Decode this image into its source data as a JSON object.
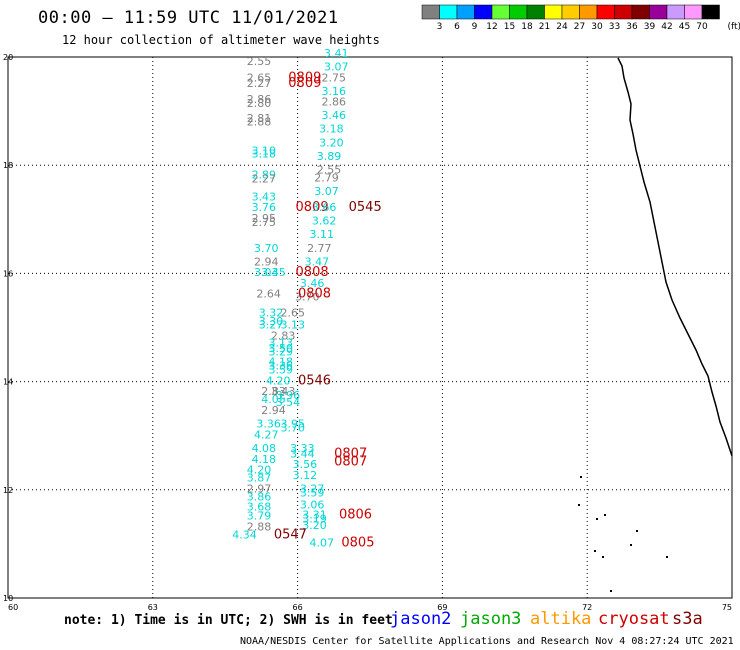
{
  "header": {
    "title": "00:00 – 11:59 UTC 11/01/2021",
    "subtitle": "12 hour collection of altimeter wave heights"
  },
  "legend": {
    "unit": "(ft)",
    "bins": [
      {
        "label": "3",
        "color": "#808080"
      },
      {
        "label": "6",
        "color": "#00ffff"
      },
      {
        "label": "9",
        "color": "#00a0ff"
      },
      {
        "label": "12",
        "color": "#0000ff"
      },
      {
        "label": "15",
        "color": "#66ff33"
      },
      {
        "label": "18",
        "color": "#00cc00"
      },
      {
        "label": "21",
        "color": "#008000"
      },
      {
        "label": "24",
        "color": "#ffff00"
      },
      {
        "label": "27",
        "color": "#ffcc00"
      },
      {
        "label": "30",
        "color": "#ff9900"
      },
      {
        "label": "33",
        "color": "#ff0000"
      },
      {
        "label": "36",
        "color": "#cc0000"
      },
      {
        "label": "39",
        "color": "#800000"
      },
      {
        "label": "42",
        "color": "#990099"
      },
      {
        "label": "45",
        "color": "#cc99ff"
      },
      {
        "label": "70",
        "color": "#ff99ff"
      },
      {
        "label": "",
        "color": "#000000"
      }
    ]
  },
  "footer": {
    "note": "note: 1) Time is in UTC; 2) SWH is in feet",
    "credit": "NOAA/NESDIS Center for Satellite Applications and Research    Nov  4 08:27:24 UTC 2021"
  },
  "satellites": [
    {
      "name": "jason2",
      "color": "#0000ff"
    },
    {
      "name": "jason3",
      "color": "#00aa00"
    },
    {
      "name": "altika",
      "color": "#ff9900"
    },
    {
      "name": "cryosat",
      "color": "#cc0000"
    },
    {
      "name": "s3a",
      "color": "#800000"
    }
  ],
  "chart_data": {
    "type": "scatter",
    "title": "12 hour collection of altimeter wave heights",
    "x_ticks": [
      "60",
      "63",
      "66",
      "69",
      "72",
      "75"
    ],
    "y_ticks": [
      "10",
      "12",
      "14",
      "16",
      "18",
      "20"
    ],
    "xlim": [
      60,
      75
    ],
    "ylim": [
      10,
      20
    ],
    "grid": true,
    "points": [
      {
        "x": 66.8,
        "y": 20.0,
        "t": "3.41",
        "c": "#00d8d8"
      },
      {
        "x": 66.8,
        "y": 19.75,
        "t": "3.07",
        "c": "#00d8d8"
      },
      {
        "x": 65.2,
        "y": 19.85,
        "t": "2.55",
        "c": "#808080"
      },
      {
        "x": 65.2,
        "y": 19.55,
        "t": "2.65",
        "c": "#808080"
      },
      {
        "x": 65.2,
        "y": 19.45,
        "t": "2.27",
        "c": "#808080"
      },
      {
        "x": 66.15,
        "y": 19.55,
        "t": "0809",
        "c": "#cc0000",
        "sz": 13
      },
      {
        "x": 66.15,
        "y": 19.45,
        "t": "0809",
        "c": "#cc0000",
        "sz": 13
      },
      {
        "x": 66.75,
        "y": 19.55,
        "t": "2.75",
        "c": "#808080"
      },
      {
        "x": 66.75,
        "y": 19.3,
        "t": "3.16",
        "c": "#00d8d8"
      },
      {
        "x": 65.2,
        "y": 19.15,
        "t": "2.86",
        "c": "#808080"
      },
      {
        "x": 65.2,
        "y": 19.08,
        "t": "2.80",
        "c": "#808080"
      },
      {
        "x": 66.75,
        "y": 19.1,
        "t": "2.86",
        "c": "#808080"
      },
      {
        "x": 66.75,
        "y": 18.85,
        "t": "3.46",
        "c": "#00d8d8"
      },
      {
        "x": 65.2,
        "y": 18.8,
        "t": "2.81",
        "c": "#808080"
      },
      {
        "x": 65.2,
        "y": 18.73,
        "t": "2.88",
        "c": "#808080"
      },
      {
        "x": 66.7,
        "y": 18.6,
        "t": "3.18",
        "c": "#00d8d8"
      },
      {
        "x": 66.7,
        "y": 18.35,
        "t": "3.20",
        "c": "#00d8d8"
      },
      {
        "x": 65.3,
        "y": 18.2,
        "t": "3.10",
        "c": "#00d8d8"
      },
      {
        "x": 65.3,
        "y": 18.14,
        "t": "3.18",
        "c": "#00d8d8"
      },
      {
        "x": 66.65,
        "y": 18.1,
        "t": "3.89",
        "c": "#00d8d8"
      },
      {
        "x": 66.65,
        "y": 17.85,
        "t": "2.55",
        "c": "#808080"
      },
      {
        "x": 65.3,
        "y": 17.75,
        "t": "2.89",
        "c": "#00d8d8"
      },
      {
        "x": 65.3,
        "y": 17.68,
        "t": "2.27",
        "c": "#808080"
      },
      {
        "x": 66.6,
        "y": 17.7,
        "t": "2.79",
        "c": "#808080"
      },
      {
        "x": 66.6,
        "y": 17.45,
        "t": "3.07",
        "c": "#00d8d8"
      },
      {
        "x": 65.3,
        "y": 17.35,
        "t": "3.43",
        "c": "#00d8d8"
      },
      {
        "x": 65.3,
        "y": 17.15,
        "t": "3.76",
        "c": "#00d8d8"
      },
      {
        "x": 66.3,
        "y": 17.15,
        "t": "0809",
        "c": "#cc0000",
        "sz": 13
      },
      {
        "x": 66.55,
        "y": 17.15,
        "t": "3.66",
        "c": "#00d8d8"
      },
      {
        "x": 67.4,
        "y": 17.15,
        "t": "0545",
        "c": "#800000",
        "sz": 13
      },
      {
        "x": 65.3,
        "y": 16.95,
        "t": "2.95",
        "c": "#808080"
      },
      {
        "x": 65.3,
        "y": 16.88,
        "t": "2.75",
        "c": "#808080"
      },
      {
        "x": 66.55,
        "y": 16.9,
        "t": "3.62",
        "c": "#00d8d8"
      },
      {
        "x": 66.5,
        "y": 16.65,
        "t": "3.11",
        "c": "#00d8d8"
      },
      {
        "x": 65.35,
        "y": 16.4,
        "t": "3.70",
        "c": "#00d8d8"
      },
      {
        "x": 66.45,
        "y": 16.4,
        "t": "2.77",
        "c": "#808080"
      },
      {
        "x": 65.35,
        "y": 16.15,
        "t": "2.94",
        "c": "#808080"
      },
      {
        "x": 66.4,
        "y": 16.15,
        "t": "3.47",
        "c": "#00d8d8"
      },
      {
        "x": 65.35,
        "y": 15.95,
        "t": "3.03",
        "c": "#00d8d8"
      },
      {
        "x": 65.5,
        "y": 15.95,
        "t": "3.45",
        "c": "#00d8d8"
      },
      {
        "x": 66.3,
        "y": 15.95,
        "t": "0808",
        "c": "#cc0000",
        "sz": 13
      },
      {
        "x": 66.3,
        "y": 15.75,
        "t": "3.46",
        "c": "#00d8d8"
      },
      {
        "x": 65.4,
        "y": 15.55,
        "t": "2.64",
        "c": "#808080"
      },
      {
        "x": 66.2,
        "y": 15.5,
        "t": "3.70",
        "c": "#808080"
      },
      {
        "x": 66.35,
        "y": 15.55,
        "t": "0808",
        "c": "#cc0000",
        "sz": 13
      },
      {
        "x": 65.45,
        "y": 15.2,
        "t": "3.32",
        "c": "#00d8d8"
      },
      {
        "x": 65.9,
        "y": 15.2,
        "t": "2.65",
        "c": "#808080"
      },
      {
        "x": 65.45,
        "y": 15.05,
        "t": "3.30",
        "c": "#00d8d8"
      },
      {
        "x": 65.45,
        "y": 14.98,
        "t": "3.27",
        "c": "#00d8d8"
      },
      {
        "x": 65.9,
        "y": 14.98,
        "t": "3.13",
        "c": "#00d8d8"
      },
      {
        "x": 65.7,
        "y": 14.78,
        "t": "2.83",
        "c": "#808080"
      },
      {
        "x": 65.65,
        "y": 14.65,
        "t": "3.13",
        "c": "#00d8d8"
      },
      {
        "x": 65.65,
        "y": 14.55,
        "t": "3.50",
        "c": "#00d8d8"
      },
      {
        "x": 65.65,
        "y": 14.48,
        "t": "3.29",
        "c": "#00d8d8"
      },
      {
        "x": 65.65,
        "y": 14.3,
        "t": "4.18",
        "c": "#00d8d8"
      },
      {
        "x": 65.65,
        "y": 14.22,
        "t": "3.36",
        "c": "#00d8d8"
      },
      {
        "x": 65.65,
        "y": 14.15,
        "t": "3.59",
        "c": "#00d8d8"
      },
      {
        "x": 65.6,
        "y": 13.95,
        "t": "4.20",
        "c": "#00d8d8"
      },
      {
        "x": 66.35,
        "y": 13.95,
        "t": "0546",
        "c": "#800000",
        "sz": 13
      },
      {
        "x": 65.5,
        "y": 13.75,
        "t": "2.83",
        "c": "#808080"
      },
      {
        "x": 65.7,
        "y": 13.75,
        "t": "3.43",
        "c": "#808080"
      },
      {
        "x": 65.8,
        "y": 13.68,
        "t": "3.96",
        "c": "#00d8d8"
      },
      {
        "x": 65.5,
        "y": 13.6,
        "t": "4.05",
        "c": "#00d8d8"
      },
      {
        "x": 65.8,
        "y": 13.55,
        "t": "3.54",
        "c": "#00d8d8"
      },
      {
        "x": 65.5,
        "y": 13.4,
        "t": "2.94",
        "c": "#808080"
      },
      {
        "x": 65.4,
        "y": 13.15,
        "t": "3.36",
        "c": "#00d8d8"
      },
      {
        "x": 65.9,
        "y": 13.15,
        "t": "3.95",
        "c": "#00d8d8"
      },
      {
        "x": 65.9,
        "y": 13.08,
        "t": "3.70",
        "c": "#00d8d8"
      },
      {
        "x": 65.35,
        "y": 12.95,
        "t": "4.27",
        "c": "#00d8d8"
      },
      {
        "x": 65.3,
        "y": 12.7,
        "t": "4.08",
        "c": "#00d8d8"
      },
      {
        "x": 66.1,
        "y": 12.7,
        "t": "3.33",
        "c": "#00d8d8"
      },
      {
        "x": 66.1,
        "y": 12.6,
        "t": "3.44",
        "c": "#00d8d8"
      },
      {
        "x": 67.1,
        "y": 12.6,
        "t": "0807",
        "c": "#cc0000",
        "sz": 13
      },
      {
        "x": 65.3,
        "y": 12.5,
        "t": "4.18",
        "c": "#00d8d8"
      },
      {
        "x": 66.15,
        "y": 12.4,
        "t": "3.56",
        "c": "#00d8d8"
      },
      {
        "x": 67.1,
        "y": 12.45,
        "t": "0807",
        "c": "#cc0000",
        "sz": 13
      },
      {
        "x": 65.2,
        "y": 12.3,
        "t": "4.20",
        "c": "#00d8d8"
      },
      {
        "x": 66.15,
        "y": 12.2,
        "t": "3.12",
        "c": "#00d8d8"
      },
      {
        "x": 65.2,
        "y": 12.15,
        "t": "3.87",
        "c": "#00d8d8"
      },
      {
        "x": 65.2,
        "y": 11.95,
        "t": "2.97",
        "c": "#808080"
      },
      {
        "x": 66.3,
        "y": 11.95,
        "t": "3.27",
        "c": "#00d8d8"
      },
      {
        "x": 66.3,
        "y": 11.88,
        "t": "3.59",
        "c": "#00d8d8"
      },
      {
        "x": 65.2,
        "y": 11.8,
        "t": "3.86",
        "c": "#00d8d8"
      },
      {
        "x": 65.2,
        "y": 11.62,
        "t": "3.68",
        "c": "#00d8d8"
      },
      {
        "x": 66.3,
        "y": 11.65,
        "t": "3.06",
        "c": "#00d8d8"
      },
      {
        "x": 65.2,
        "y": 11.45,
        "t": "3.79",
        "c": "#00d8d8"
      },
      {
        "x": 66.35,
        "y": 11.47,
        "t": "3.31",
        "c": "#00d8d8"
      },
      {
        "x": 66.35,
        "y": 11.4,
        "t": "3.19",
        "c": "#00d8d8"
      },
      {
        "x": 67.2,
        "y": 11.47,
        "t": "0806",
        "c": "#cc0000",
        "sz": 13
      },
      {
        "x": 65.2,
        "y": 11.25,
        "t": "2.88",
        "c": "#808080"
      },
      {
        "x": 66.35,
        "y": 11.28,
        "t": "3.20",
        "c": "#00d8d8"
      },
      {
        "x": 64.9,
        "y": 11.1,
        "t": "4.34",
        "c": "#00d8d8"
      },
      {
        "x": 65.85,
        "y": 11.1,
        "t": "0547",
        "c": "#800000",
        "sz": 13
      },
      {
        "x": 66.5,
        "y": 10.95,
        "t": "4.07",
        "c": "#00d8d8"
      },
      {
        "x": 67.25,
        "y": 10.95,
        "t": "0805",
        "c": "#cc0000",
        "sz": 13
      }
    ]
  }
}
